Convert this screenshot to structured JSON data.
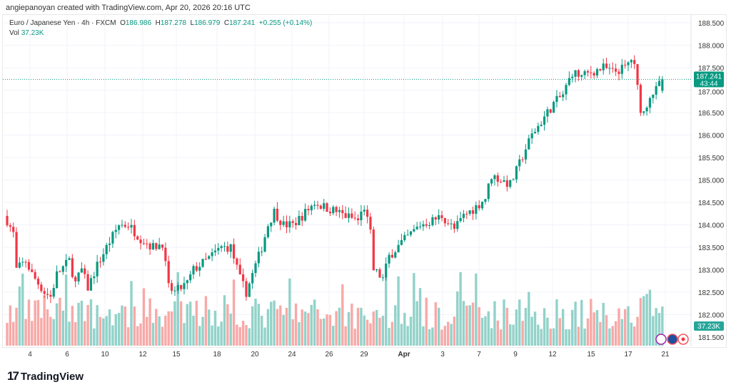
{
  "credit": "angiepanoyan created with TradingView.com, Apr 20, 2026 20:16 UTC",
  "legend": {
    "symbol": "Euro / Japanese Yen · 4h · FXCM",
    "o_label": "O",
    "o": "186.986",
    "h_label": "H",
    "h": "187.278",
    "l_label": "L",
    "l": "186.979",
    "c_label": "C",
    "c": "187.241",
    "change": "+0.255 (+0.14%)",
    "vol_label": "Vol",
    "vol": "37.23K"
  },
  "price_badge": {
    "price": "187.241",
    "countdown": "43:44"
  },
  "vol_badge": "37.23K",
  "logo": "TradingView",
  "colors": {
    "up": "#089981",
    "down": "#f23645",
    "up_vol": "#92d2c9",
    "down_vol": "#f7a9a7"
  },
  "chart_data": {
    "type": "candlestick",
    "title": "Euro / Japanese Yen · 4h · FXCM",
    "y_ticks": [
      "188.500",
      "188.000",
      "187.500",
      "187.000",
      "186.500",
      "186.000",
      "185.500",
      "185.000",
      "184.500",
      "184.000",
      "183.500",
      "183.000",
      "182.500",
      "182.000",
      "181.500"
    ],
    "ylim": [
      181.5,
      188.5
    ],
    "x_ticks": [
      "4",
      "6",
      "10",
      "12",
      "15",
      "18",
      "20",
      "24",
      "26",
      "29",
      "Apr",
      "3",
      "7",
      "9",
      "12",
      "15",
      "17",
      "21"
    ],
    "last_price": 187.241,
    "close_waypoints": [
      [
        0,
        184.1
      ],
      [
        2,
        183.8
      ],
      [
        3,
        183.0
      ],
      [
        6,
        183.2
      ],
      [
        8,
        182.9
      ],
      [
        12,
        182.5
      ],
      [
        14,
        182.4
      ],
      [
        16,
        182.9
      ],
      [
        20,
        183.2
      ],
      [
        22,
        182.7
      ],
      [
        24,
        183.0
      ],
      [
        26,
        182.6
      ],
      [
        29,
        183.1
      ],
      [
        32,
        183.5
      ],
      [
        36,
        184.0
      ],
      [
        39,
        184.0
      ],
      [
        43,
        183.7
      ],
      [
        47,
        183.5
      ],
      [
        50,
        183.6
      ],
      [
        52,
        182.6
      ],
      [
        54,
        182.5
      ],
      [
        58,
        182.7
      ],
      [
        60,
        183.0
      ],
      [
        64,
        183.2
      ],
      [
        69,
        183.5
      ],
      [
        72,
        183.5
      ],
      [
        75,
        182.8
      ],
      [
        77,
        182.5
      ],
      [
        79,
        182.9
      ],
      [
        82,
        183.5
      ],
      [
        84,
        184.0
      ],
      [
        86,
        184.3
      ],
      [
        89,
        184.0
      ],
      [
        92,
        184.0
      ],
      [
        95,
        184.2
      ],
      [
        99,
        184.5
      ],
      [
        102,
        184.4
      ],
      [
        106,
        184.3
      ],
      [
        109,
        184.2
      ],
      [
        113,
        184.1
      ],
      [
        115,
        184.4
      ],
      [
        117,
        183.8
      ],
      [
        118,
        183.0
      ],
      [
        121,
        182.8
      ],
      [
        123,
        183.3
      ],
      [
        127,
        183.6
      ],
      [
        130,
        183.8
      ],
      [
        133,
        184.0
      ],
      [
        137,
        184.1
      ],
      [
        140,
        184.2
      ],
      [
        144,
        183.9
      ],
      [
        147,
        184.2
      ],
      [
        151,
        184.4
      ],
      [
        154,
        184.6
      ],
      [
        156,
        185.1
      ],
      [
        159,
        185.0
      ],
      [
        162,
        184.9
      ],
      [
        164,
        185.2
      ],
      [
        167,
        185.7
      ],
      [
        169,
        186.0
      ],
      [
        172,
        186.3
      ],
      [
        176,
        186.7
      ],
      [
        179,
        186.9
      ],
      [
        182,
        187.4
      ],
      [
        185,
        187.3
      ],
      [
        188,
        187.4
      ],
      [
        192,
        187.5
      ],
      [
        195,
        187.4
      ],
      [
        199,
        187.5
      ],
      [
        201,
        187.7
      ],
      [
        202,
        187.5
      ],
      [
        204,
        186.6
      ],
      [
        205,
        186.5
      ],
      [
        207,
        186.9
      ],
      [
        209,
        187.0
      ],
      [
        211,
        187.241
      ]
    ]
  }
}
